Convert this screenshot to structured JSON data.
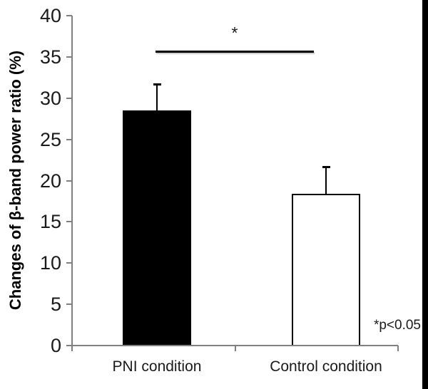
{
  "chart_data": {
    "type": "bar",
    "title": "",
    "xlabel": "",
    "ylabel": "Changes of β-band power ratio (%)",
    "categories": [
      "PNI condition",
      "Control condition"
    ],
    "series": [
      {
        "name": "Changes of β-band power ratio (%)",
        "values": [
          28.5,
          18.4
        ],
        "errors_plus": [
          3.2,
          3.3
        ],
        "bar_fills": [
          "#000000",
          "#ffffff"
        ],
        "bar_border": "#000000"
      }
    ],
    "ylim": [
      0,
      40
    ],
    "yticks": [
      0,
      5,
      10,
      15,
      20,
      25,
      30,
      35,
      40
    ],
    "grid": false,
    "legend": false,
    "significance": {
      "label": "*",
      "between": [
        "PNI condition",
        "Control condition"
      ],
      "y_value": 35.6
    },
    "p_note": "*p<0.05",
    "axis_color": "#808080",
    "text_color": "#1a1a1a",
    "background": "#ffffff"
  }
}
